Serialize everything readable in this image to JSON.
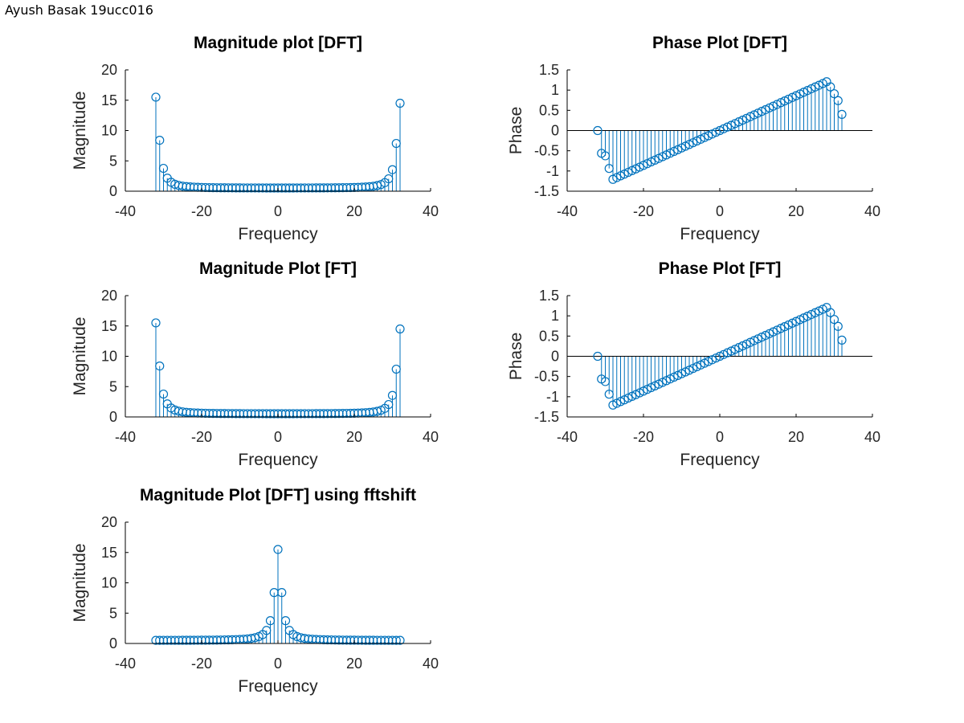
{
  "window": {
    "title": "Ayush Basak 19ucc016"
  },
  "colors": {
    "stem": "#0072BD",
    "axis": "#000000",
    "text": "#262626"
  },
  "chart_data": [
    {
      "type": "stem",
      "title": "Magnitude plot [DFT]",
      "xlabel": "Frequency",
      "ylabel": "Magnitude",
      "xlim": [
        -40,
        40
      ],
      "ylim": [
        0,
        20
      ],
      "xticks": [
        "-40",
        "-20",
        "0",
        "20",
        "40"
      ],
      "yticks": [
        "0",
        "5",
        "10",
        "15",
        "20"
      ],
      "x_range": [
        -32,
        32
      ],
      "points": 65,
      "series": [
        {
          "shape": "edge-peaks",
          "peak_left": 15.5,
          "peak_right": 14.5,
          "floor": 0.5
        }
      ]
    },
    {
      "type": "stem",
      "title": "Phase Plot [DFT]",
      "xlabel": "Frequency",
      "ylabel": "Phase",
      "xlim": [
        -40,
        40
      ],
      "ylim": [
        -1.5,
        1.5
      ],
      "xticks": [
        "-40",
        "-20",
        "0",
        "20",
        "40"
      ],
      "yticks": [
        "-1.5",
        "-1",
        "-0.5",
        "0",
        "0.5",
        "1",
        "1.5"
      ],
      "x_range": [
        -32,
        32
      ],
      "points": 65,
      "series": [
        {
          "shape": "phase-ramp",
          "endpoints": [
            0,
            0.4
          ],
          "min": -1.25,
          "max": 1.25
        }
      ]
    },
    {
      "type": "stem",
      "title": "Magnitude Plot [FT]",
      "xlabel": "Frequency",
      "ylabel": "Magnitude",
      "xlim": [
        -40,
        40
      ],
      "ylim": [
        0,
        20
      ],
      "xticks": [
        "-40",
        "-20",
        "0",
        "20",
        "40"
      ],
      "yticks": [
        "0",
        "5",
        "10",
        "15",
        "20"
      ],
      "x_range": [
        -32,
        32
      ],
      "points": 65,
      "series": [
        {
          "shape": "edge-peaks",
          "peak_left": 15.5,
          "peak_right": 14.5,
          "floor": 0.5
        }
      ]
    },
    {
      "type": "stem",
      "title": "Phase Plot [FT]",
      "xlabel": "Frequency",
      "ylabel": "Phase",
      "xlim": [
        -40,
        40
      ],
      "ylim": [
        -1.5,
        1.5
      ],
      "xticks": [
        "-40",
        "-20",
        "0",
        "20",
        "40"
      ],
      "yticks": [
        "-1.5",
        "-1",
        "-0.5",
        "0",
        "0.5",
        "1",
        "1.5"
      ],
      "x_range": [
        -32,
        32
      ],
      "points": 65,
      "series": [
        {
          "shape": "phase-ramp",
          "endpoints": [
            0,
            0.4
          ],
          "min": -1.25,
          "max": 1.25
        }
      ]
    },
    {
      "type": "stem",
      "title": "Magnitude Plot [DFT] using fftshift",
      "xlabel": "Frequency",
      "ylabel": "Magnitude",
      "xlim": [
        -40,
        40
      ],
      "ylim": [
        0,
        20
      ],
      "xticks": [
        "-40",
        "-20",
        "0",
        "20",
        "40"
      ],
      "yticks": [
        "0",
        "5",
        "10",
        "15",
        "20"
      ],
      "x_range": [
        -32,
        32
      ],
      "points": 65,
      "series": [
        {
          "shape": "center-peak",
          "peak": 15.5,
          "floor": 0.5
        }
      ]
    }
  ]
}
